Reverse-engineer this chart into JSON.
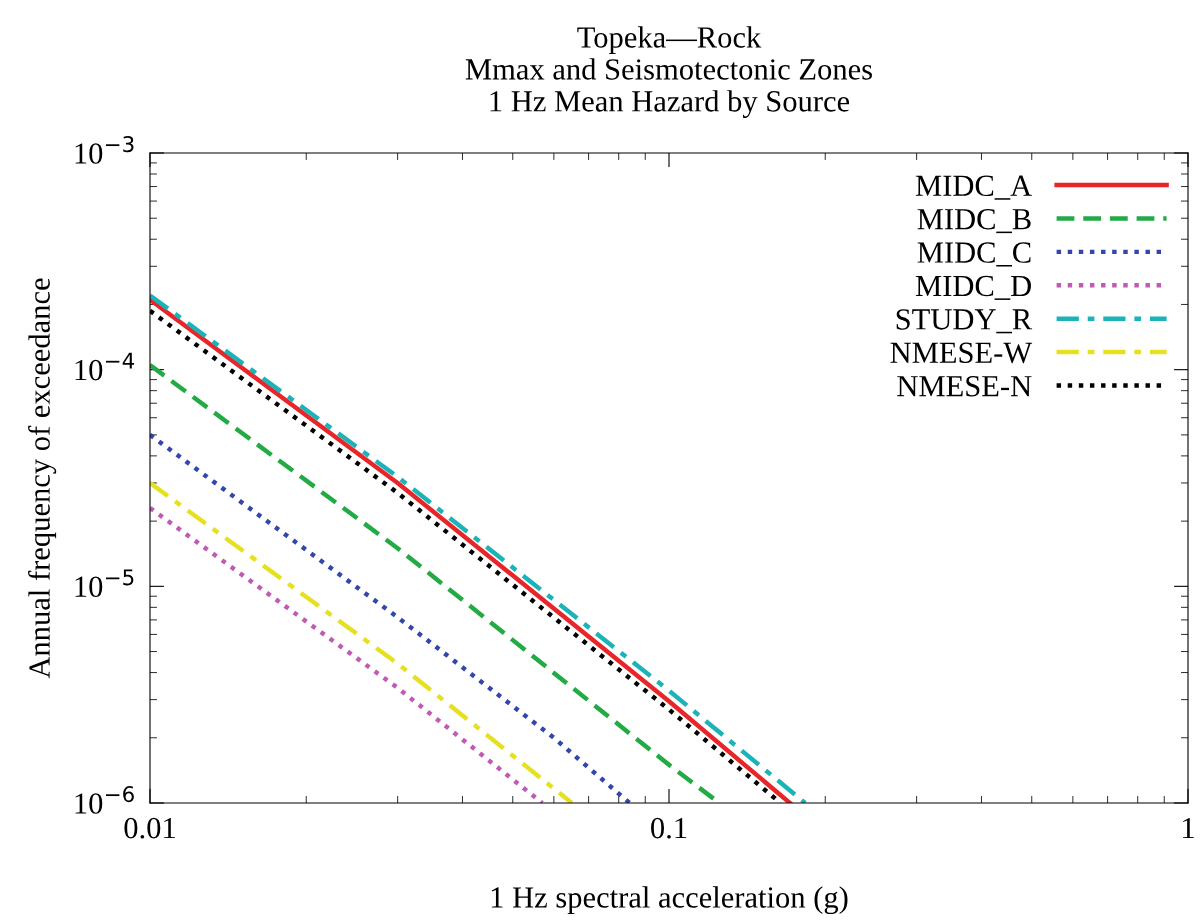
{
  "chart_data": {
    "type": "line",
    "title": "Topeka—Rock\nMmax and Seismotectonic Zones\n1 Hz Mean Hazard by Source",
    "xlabel": "1 Hz spectral acceleration (g)",
    "ylabel": "Annual frequency of exceedance",
    "log": "xy",
    "grid": false,
    "legend": "top right",
    "marker": "none",
    "xlim": [
      0.01,
      1
    ],
    "ylim": [
      1e-06,
      0.001
    ],
    "xticks": [
      0.01,
      0.1,
      1
    ],
    "yticks": [
      {
        "value": 1e-06,
        "label": "10$^{−6}$"
      },
      {
        "value": 1e-05,
        "label": "10$^{−5}$"
      },
      {
        "value": 0.0001,
        "label": "10$^{−4}$"
      },
      {
        "value": 0.001,
        "label": "10$^{−3}$"
      }
    ],
    "series": [
      {
        "name": "MIDC_A",
        "color": "#e8262a",
        "line_style": "solid",
        "x": [
          0.01,
          0.03,
          0.1,
          0.171
        ],
        "values": [
          0.00021,
          3e-05,
          2.95e-06,
          1e-06
        ]
      },
      {
        "name": "MIDC_B",
        "color": "#22aa44",
        "line_style": "dashed",
        "x": [
          0.01,
          0.03,
          0.1,
          0.125
        ],
        "values": [
          0.000105,
          1.5e-05,
          1.5e-06,
          1e-06
        ]
      },
      {
        "name": "MIDC_C",
        "color": "#3346aa",
        "line_style": "dotted",
        "x": [
          0.01,
          0.03,
          0.06,
          0.084
        ],
        "values": [
          5e-05,
          7.2e-06,
          2e-06,
          1e-06
        ]
      },
      {
        "name": "MIDC_D",
        "color": "#c05ab4",
        "line_style": "dotted",
        "x": [
          0.01,
          0.03,
          0.057
        ],
        "values": [
          2.3e-05,
          3.4e-06,
          1e-06
        ]
      },
      {
        "name": "STUDY_R",
        "color": "#1cb3b8",
        "line_style": "dashdot",
        "x": [
          0.01,
          0.03,
          0.1,
          0.183
        ],
        "values": [
          0.00022,
          3.2e-05,
          3.3e-06,
          1e-06
        ]
      },
      {
        "name": "NMESE-W",
        "color": "#e6e020",
        "line_style": "dashdot",
        "x": [
          0.01,
          0.03,
          0.065
        ],
        "values": [
          3e-05,
          4.4e-06,
          1e-06
        ]
      },
      {
        "name": "NMESE-N",
        "color": "#000000",
        "line_style": "dotted",
        "x": [
          0.01,
          0.03,
          0.1,
          0.164
        ],
        "values": [
          0.000187,
          2.7e-05,
          2.7e-06,
          1e-06
        ]
      }
    ]
  }
}
